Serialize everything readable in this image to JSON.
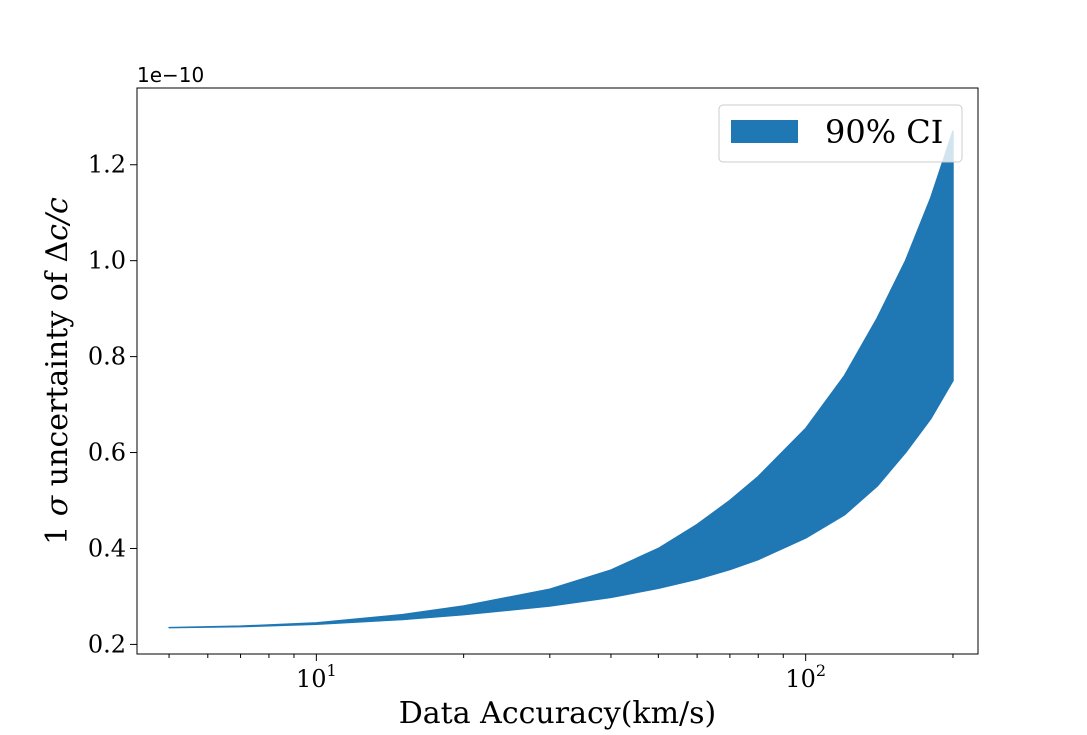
{
  "chart_data": {
    "type": "area",
    "xscale": "log",
    "xlim": [
      4.3,
      225
    ],
    "ylim": [
      1.8e-11,
      1.36e-10
    ],
    "xlabel": "Data Accuracy(km/s)",
    "ylabel": {
      "prefix": "1 ",
      "sigma": "σ",
      "mid": " uncertainty of ",
      "delta": "Δ",
      "frac": "c/c"
    },
    "offset_text": "1e−10",
    "x_major_ticks": [
      {
        "value": 10,
        "base": "10",
        "exp": "1"
      },
      {
        "value": 100,
        "base": "10",
        "exp": "2"
      }
    ],
    "x_minor_ticks": [
      5,
      6,
      7,
      8,
      9,
      20,
      30,
      40,
      50,
      60,
      70,
      80,
      90,
      200
    ],
    "y_ticks": [
      {
        "value": 2e-11,
        "label": "0.2"
      },
      {
        "value": 4e-11,
        "label": "0.4"
      },
      {
        "value": 6e-11,
        "label": "0.6"
      },
      {
        "value": 8e-11,
        "label": "0.8"
      },
      {
        "value": 1e-10,
        "label": "1.0"
      },
      {
        "value": 1.2e-10,
        "label": "1.2"
      }
    ],
    "grid": false,
    "legend": {
      "position": "top-right",
      "entries": [
        {
          "label": "90% CI",
          "color": "#1f77b4"
        }
      ]
    },
    "series": [
      {
        "name": "90% CI",
        "color": "#1f77b4",
        "x": [
          5,
          7,
          10,
          15,
          20,
          30,
          40,
          50,
          60,
          70,
          80,
          100,
          120,
          140,
          160,
          180,
          200
        ],
        "lower": [
          2.35e-11,
          2.37e-11,
          2.42e-11,
          2.52e-11,
          2.62e-11,
          2.8e-11,
          2.98e-11,
          3.17e-11,
          3.36e-11,
          3.56e-11,
          3.77e-11,
          4.22e-11,
          4.7e-11,
          5.3e-11,
          6e-11,
          6.7e-11,
          7.5e-11
        ],
        "upper": [
          2.35e-11,
          2.38e-11,
          2.45e-11,
          2.62e-11,
          2.8e-11,
          3.15e-11,
          3.55e-11,
          4e-11,
          4.5e-11,
          5e-11,
          5.5e-11,
          6.5e-11,
          7.6e-11,
          8.8e-11,
          1e-10,
          1.13e-10,
          1.27e-10
        ]
      }
    ]
  }
}
